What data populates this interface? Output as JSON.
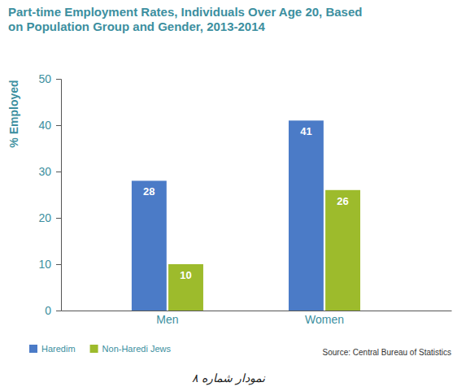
{
  "chart_data": {
    "type": "bar",
    "title": "Part-time Employment Rates, Individuals Over Age 20, Based on Population Group and Gender, 2013-2014",
    "y_label": "% Employed",
    "categories": [
      "Men",
      "Women"
    ],
    "series": [
      {
        "name": "Haredim",
        "color": "#4b7bc7",
        "values": [
          28,
          41
        ]
      },
      {
        "name": "Non-Haredi Jews",
        "color": "#9dbb2c",
        "values": [
          10,
          26
        ]
      }
    ],
    "ylim": [
      0,
      50
    ],
    "yticks": [
      0,
      10,
      20,
      30,
      40,
      50
    ],
    "grid": false,
    "data_labels": true,
    "legend": "bottom-left",
    "annotations": [
      "Source: Central Bureau of Statistics",
      "نمودار شماره ۸"
    ]
  }
}
